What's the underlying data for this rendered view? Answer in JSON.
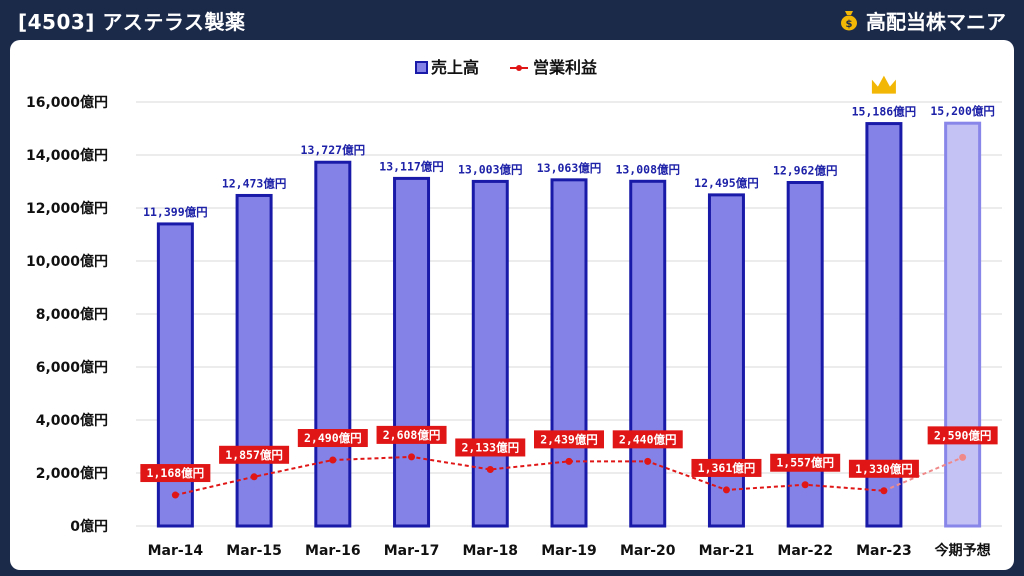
{
  "header": {
    "title": "[4503] アステラス製薬",
    "brand": "高配当株マニア",
    "brand_icon": "money-bag-icon"
  },
  "colors": {
    "background": "#1c2a4a",
    "bar_fill": "#8482e6",
    "bar_stroke": "#1a1aa8",
    "forecast_fill": "#c4c2f4",
    "forecast_stroke": "#8886e8",
    "line": "#e01515",
    "forecast_line": "#f08a8a",
    "crown": "#f2b705"
  },
  "chart_data": {
    "type": "bar",
    "categories": [
      "Mar-14",
      "Mar-15",
      "Mar-16",
      "Mar-17",
      "Mar-18",
      "Mar-19",
      "Mar-20",
      "Mar-21",
      "Mar-22",
      "Mar-23",
      "今期予想"
    ],
    "ylim": [
      0,
      16000
    ],
    "yticks": [
      0,
      2000,
      4000,
      6000,
      8000,
      10000,
      12000,
      14000,
      16000
    ],
    "ytick_labels": [
      "0億円",
      "2,000億円",
      "4,000億円",
      "6,000億円",
      "8,000億円",
      "10,000億円",
      "12,000億円",
      "14,000億円",
      "16,000億円"
    ],
    "grid": true,
    "legend_position": "top-center",
    "series": [
      {
        "name": "売上高",
        "type": "bar",
        "values": [
          11399,
          12473,
          13727,
          13117,
          13003,
          13063,
          13008,
          12495,
          12962,
          15186,
          15200
        ],
        "labels": [
          "11,399億円",
          "12,473億円",
          "13,727億円",
          "13,117億円",
          "13,003億円",
          "13,063億円",
          "13,008億円",
          "12,495億円",
          "12,962億円",
          "15,186億円",
          "15,200億円"
        ]
      },
      {
        "name": "営業利益",
        "type": "line",
        "values": [
          1168,
          1857,
          2490,
          2608,
          2133,
          2439,
          2440,
          1361,
          1557,
          1330,
          2590
        ],
        "labels": [
          "1,168億円",
          "1,857億円",
          "2,490億円",
          "2,608億円",
          "2,133億円",
          "2,439億円",
          "2,440億円",
          "1,361億円",
          "1,557億円",
          "1,330億円",
          "2,590億円"
        ]
      }
    ],
    "forecast_index": 10,
    "crown_index": 9
  }
}
